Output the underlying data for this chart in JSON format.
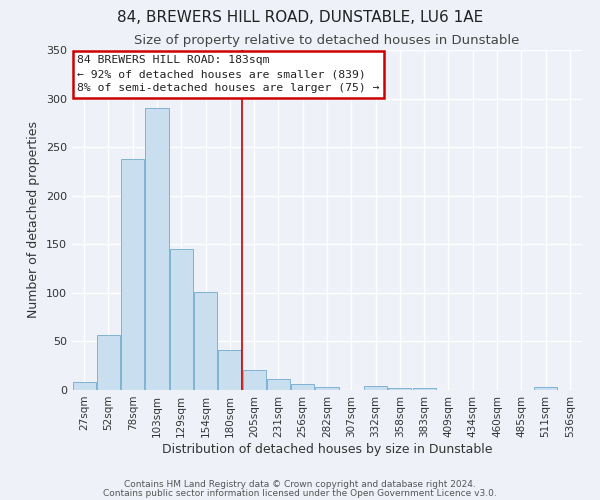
{
  "title": "84, BREWERS HILL ROAD, DUNSTABLE, LU6 1AE",
  "subtitle": "Size of property relative to detached houses in Dunstable",
  "xlabel": "Distribution of detached houses by size in Dunstable",
  "ylabel": "Number of detached properties",
  "bin_labels": [
    "27sqm",
    "52sqm",
    "78sqm",
    "103sqm",
    "129sqm",
    "154sqm",
    "180sqm",
    "205sqm",
    "231sqm",
    "256sqm",
    "282sqm",
    "307sqm",
    "332sqm",
    "358sqm",
    "383sqm",
    "409sqm",
    "434sqm",
    "460sqm",
    "485sqm",
    "511sqm",
    "536sqm"
  ],
  "bar_values": [
    8,
    57,
    238,
    290,
    145,
    101,
    41,
    21,
    11,
    6,
    3,
    0,
    4,
    2,
    2,
    0,
    0,
    0,
    0,
    3,
    0
  ],
  "bar_color": "#c9dff0",
  "bar_edgecolor": "#7fb3d3",
  "vline_x": 6.5,
  "vline_color": "#cc0000",
  "ylim": [
    0,
    350
  ],
  "yticks": [
    0,
    50,
    100,
    150,
    200,
    250,
    300,
    350
  ],
  "annotation_title": "84 BREWERS HILL ROAD: 183sqm",
  "annotation_line1": "← 92% of detached houses are smaller (839)",
  "annotation_line2": "8% of semi-detached houses are larger (75) →",
  "annotation_box_color": "#ffffff",
  "annotation_box_edgecolor": "#cc0000",
  "footer1": "Contains HM Land Registry data © Crown copyright and database right 2024.",
  "footer2": "Contains public sector information licensed under the Open Government Licence v3.0.",
  "bg_color": "#eef2f8",
  "grid_color": "#ffffff",
  "title_fontsize": 11,
  "subtitle_fontsize": 9.5,
  "axis_label_fontsize": 9,
  "tick_fontsize": 8,
  "xtick_fontsize": 7.5
}
